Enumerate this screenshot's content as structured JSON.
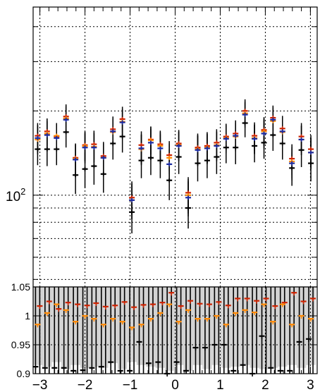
{
  "chart_data": [
    {
      "type": "scatter",
      "panel": "main",
      "title": "",
      "xlabel": "",
      "ylabel": "",
      "y_scale": "log",
      "xlim": [
        -3.15,
        3.15
      ],
      "ylim": [
        47,
        470
      ],
      "grid": true,
      "y_major_tick_labels": [
        {
          "value": 100,
          "base": "10",
          "exp": "2"
        }
      ],
      "x": [
        -3.05,
        -2.84,
        -2.63,
        -2.42,
        -2.21,
        -2.0,
        -1.8,
        -1.59,
        -1.38,
        -1.17,
        -0.96,
        -0.75,
        -0.54,
        -0.33,
        -0.13,
        0.08,
        0.29,
        0.5,
        0.71,
        0.92,
        1.13,
        1.34,
        1.55,
        1.76,
        1.97,
        2.17,
        2.38,
        2.59,
        2.8,
        3.01
      ],
      "series": [
        {
          "color": "#cc2200",
          "values": [
            163,
            169,
            162,
            191,
            136,
            151,
            152,
            138,
            172,
            187,
            98,
            151,
            158,
            152,
            139,
            153,
            102,
            148,
            150,
            154,
            162,
            166,
            200,
            163,
            171,
            189,
            173,
            135,
            162,
            146
          ],
          "errors": [
            18,
            19,
            18,
            20,
            17,
            18,
            18,
            17,
            19,
            20,
            14,
            18,
            18,
            18,
            17,
            18,
            14,
            18,
            18,
            18,
            18,
            19,
            20,
            19,
            19,
            20,
            19,
            17,
            19,
            18
          ]
        },
        {
          "color": "#ff8800",
          "values": [
            158,
            166,
            163,
            188,
            135,
            150,
            149,
            136,
            168,
            183,
            96,
            146,
            157,
            150,
            136,
            151,
            100,
            146,
            148,
            151,
            160,
            162,
            196,
            160,
            169,
            184,
            168,
            132,
            158,
            142
          ],
          "errors": [
            18,
            19,
            18,
            20,
            17,
            18,
            18,
            17,
            19,
            20,
            14,
            18,
            18,
            18,
            17,
            18,
            14,
            18,
            18,
            18,
            18,
            19,
            20,
            19,
            19,
            20,
            19,
            17,
            19,
            18
          ]
        },
        {
          "color": "#1a2aa0",
          "values": [
            160,
            164,
            160,
            186,
            134,
            148,
            148,
            136,
            169,
            182,
            96,
            147,
            154,
            147,
            129,
            150,
            98,
            145,
            147,
            150,
            159,
            163,
            194,
            159,
            166,
            186,
            169,
            130,
            158,
            142
          ],
          "errors": [
            18,
            19,
            18,
            20,
            17,
            18,
            18,
            17,
            19,
            20,
            14,
            18,
            18,
            18,
            17,
            18,
            14,
            18,
            18,
            18,
            18,
            19,
            20,
            19,
            19,
            20,
            19,
            17,
            19,
            18
          ]
        },
        {
          "color": "#000000",
          "values": [
            146,
            146,
            146,
            168,
            118,
            124,
            127,
            119,
            153,
            162,
            87,
            133,
            136,
            133,
            113,
            137,
            90,
            130,
            133,
            137,
            148,
            148,
            181,
            150,
            154,
            164,
            153,
            125,
            145,
            130
          ],
          "errors": [
            18,
            19,
            18,
            20,
            17,
            18,
            18,
            17,
            19,
            20,
            14,
            18,
            18,
            18,
            17,
            18,
            14,
            18,
            18,
            18,
            18,
            19,
            20,
            19,
            19,
            20,
            19,
            17,
            19,
            18
          ]
        }
      ]
    },
    {
      "type": "scatter",
      "panel": "ratio",
      "title": "",
      "xlabel": "",
      "ylabel": "",
      "xlim": [
        -3.15,
        3.15
      ],
      "ylim": [
        0.9,
        1.05
      ],
      "grid": true,
      "y_tick_labels": [
        "0.9",
        "0.95",
        "1",
        "1.05"
      ],
      "y_tick_values": [
        0.9,
        0.95,
        1.0,
        1.05
      ],
      "x_tick_labels": [
        "−3",
        "−2",
        "−1",
        "0",
        "1",
        "2",
        "3"
      ],
      "x_tick_values": [
        -3,
        -2,
        -1,
        0,
        1,
        2,
        3
      ],
      "band": {
        "color": "#d3d3d3",
        "lower": [
          0.915,
          0.912,
          0.92,
          0.908,
          0.915,
          0.91,
          0.912,
          0.91,
          0.918,
          0.908,
          0.92,
          0.915,
          0.912,
          0.91,
          0.905,
          0.915,
          0.905,
          0.915,
          0.908,
          0.915,
          0.91,
          0.912,
          0.915,
          0.91,
          0.908,
          0.91,
          0.912,
          0.915,
          0.91,
          0.915
        ],
        "upper": [
          1.05,
          1.05,
          1.05,
          1.05,
          1.05,
          1.05,
          1.05,
          1.05,
          1.05,
          1.05,
          1.05,
          1.05,
          1.05,
          1.05,
          1.05,
          1.05,
          1.05,
          1.05,
          1.05,
          1.05,
          1.05,
          1.05,
          1.05,
          1.05,
          1.05,
          1.05,
          1.05,
          1.05,
          1.05,
          1.05
        ]
      },
      "x": [
        -3.05,
        -2.84,
        -2.63,
        -2.42,
        -2.21,
        -2.0,
        -1.8,
        -1.59,
        -1.38,
        -1.17,
        -0.96,
        -0.75,
        -0.54,
        -0.33,
        -0.13,
        0.08,
        0.29,
        0.5,
        0.71,
        0.92,
        1.13,
        1.34,
        1.55,
        1.76,
        1.97,
        2.17,
        2.38,
        2.59,
        2.8,
        3.01
      ],
      "series": [
        {
          "color": "#cc2200",
          "values": [
            1.017,
            1.025,
            1.012,
            1.023,
            1.02,
            1.018,
            1.022,
            1.016,
            1.018,
            1.024,
            1.015,
            1.019,
            1.02,
            1.023,
            1.04,
            1.017,
            1.026,
            1.021,
            1.02,
            1.024,
            1.018,
            1.03,
            1.03,
            1.026,
            1.03,
            1.017,
            1.023,
            1.04,
            1.025,
            1.03
          ]
        },
        {
          "color": "#ff8800",
          "values": [
            0.985,
            1.005,
            1.02,
            1.01,
            0.99,
            1.0,
            0.995,
            0.985,
            0.995,
            0.99,
            0.98,
            0.985,
            0.995,
            1.005,
            1.02,
            0.99,
            1.01,
            0.995,
            0.995,
            1.0,
            0.985,
            1.005,
            1.01,
            1.006,
            1.02,
            0.99,
            1.02,
            0.985,
            1.0,
            0.995
          ]
        },
        {
          "color": "#000000",
          "values": [
            0.912,
            0.91,
            0.91,
            0.91,
            0.905,
            0.906,
            0.91,
            0.912,
            0.92,
            0.905,
            0.905,
            0.955,
            0.918,
            0.92,
            0.9,
            0.92,
            0.905,
            0.945,
            0.945,
            0.95,
            0.95,
            0.905,
            0.915,
            0.9,
            0.965,
            0.91,
            0.905,
            0.905,
            0.955,
            0.96
          ]
        }
      ]
    }
  ]
}
